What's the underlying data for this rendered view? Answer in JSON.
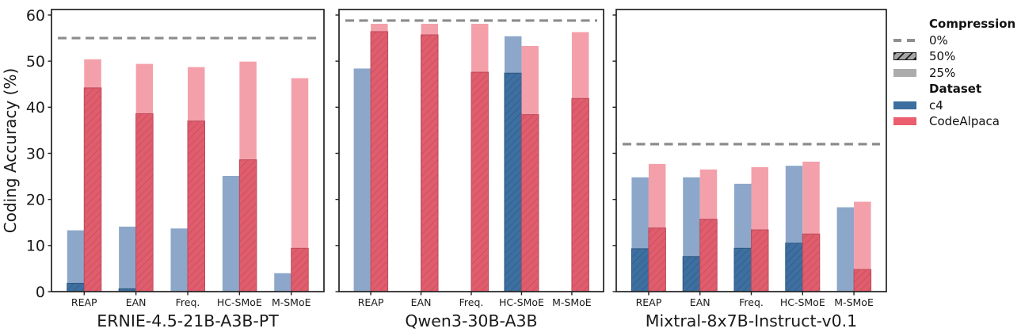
{
  "figure": {
    "ylabel": "Coding Accuracy (%)",
    "yticks": [
      0,
      10,
      20,
      30,
      40,
      50,
      60
    ]
  },
  "legend": {
    "compression_title": "Compression",
    "compression_items": [
      {
        "label": "0%",
        "style": "dashed-line"
      },
      {
        "label": "50%",
        "style": "hatched"
      },
      {
        "label": "25%",
        "style": "solid"
      }
    ],
    "dataset_title": "Dataset",
    "dataset_items": [
      {
        "label": "c4",
        "color": "#3C6E9F"
      },
      {
        "label": "CodeAlpaca",
        "color": "#EA5E6E"
      }
    ]
  },
  "colors": {
    "c4_50": "#3E6FA1",
    "c4_25": "#8CA7C9",
    "c4_hatch": "#2C577F",
    "codealpaca_50": "#E05D6D",
    "codealpaca_25": "#F4A0AA",
    "codealpaca_hatch": "#BE4A5A",
    "baseline": "#8C8C8C",
    "axis": "#222222"
  },
  "chart_data": [
    {
      "type": "bar",
      "title": "ERNIE-4.5-21B-A3B-PT",
      "categories": [
        "REAP",
        "EAN",
        "Freq.",
        "HC-SMoE",
        "M-SMoE"
      ],
      "ylim": [
        0,
        60
      ],
      "grid": false,
      "baseline_0pct": 55.0,
      "series": [
        {
          "dataset": "c4",
          "compression": "25%",
          "values": [
            13.3,
            14.1,
            13.7,
            25.1,
            4.0
          ]
        },
        {
          "dataset": "c4",
          "compression": "50%",
          "values": [
            1.8,
            0.6,
            0,
            0,
            0
          ]
        },
        {
          "dataset": "CodeAlpaca",
          "compression": "25%",
          "values": [
            50.4,
            49.4,
            48.7,
            49.9,
            46.3
          ]
        },
        {
          "dataset": "CodeAlpaca",
          "compression": "50%",
          "values": [
            44.2,
            38.6,
            37.0,
            28.6,
            9.4
          ]
        }
      ]
    },
    {
      "type": "bar",
      "title": "Qwen3-30B-A3B",
      "categories": [
        "REAP",
        "EAN",
        "Freq.",
        "HC-SMoE",
        "M-SMoE"
      ],
      "ylim": [
        0,
        60
      ],
      "grid": false,
      "baseline_0pct": 58.8,
      "series": [
        {
          "dataset": "c4",
          "compression": "25%",
          "values": [
            48.4,
            0,
            0,
            55.4,
            0
          ]
        },
        {
          "dataset": "c4",
          "compression": "50%",
          "values": [
            0,
            0,
            0,
            47.4,
            0
          ]
        },
        {
          "dataset": "CodeAlpaca",
          "compression": "25%",
          "values": [
            58.1,
            58.1,
            58.1,
            53.3,
            56.3
          ]
        },
        {
          "dataset": "CodeAlpaca",
          "compression": "50%",
          "values": [
            56.4,
            55.7,
            47.6,
            38.4,
            41.9
          ]
        }
      ]
    },
    {
      "type": "bar",
      "title": "Mixtral-8x7B-Instruct-v0.1",
      "categories": [
        "REAP",
        "EAN",
        "Freq.",
        "HC-SMoE",
        "M-SMoE"
      ],
      "ylim": [
        0,
        60
      ],
      "grid": false,
      "baseline_0pct": 32.0,
      "series": [
        {
          "dataset": "c4",
          "compression": "25%",
          "values": [
            24.8,
            24.8,
            23.4,
            27.3,
            18.3
          ]
        },
        {
          "dataset": "c4",
          "compression": "50%",
          "values": [
            9.3,
            7.6,
            9.4,
            10.5,
            0
          ]
        },
        {
          "dataset": "CodeAlpaca",
          "compression": "25%",
          "values": [
            27.7,
            26.5,
            27.0,
            28.2,
            19.5
          ]
        },
        {
          "dataset": "CodeAlpaca",
          "compression": "50%",
          "values": [
            13.8,
            15.7,
            13.4,
            12.5,
            4.8
          ]
        }
      ]
    }
  ]
}
